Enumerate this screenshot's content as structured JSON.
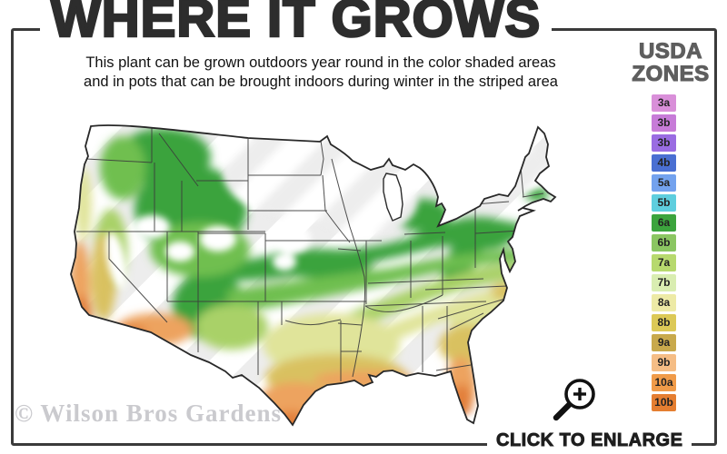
{
  "header": {
    "title": "WHERE IT GROWS",
    "subtitle_line1": "This plant can be grown outdoors year round in the color shaded areas",
    "subtitle_line2": "and in pots that can be brought indoors during winter in the striped area"
  },
  "legend": {
    "heading_line1": "USDA",
    "heading_line2": "ZONES",
    "zones": [
      {
        "label": "3a",
        "color": "#d98fd9"
      },
      {
        "label": "3b",
        "color": "#c77bd8"
      },
      {
        "label": "3b",
        "color": "#9a6ce2"
      },
      {
        "label": "4b",
        "color": "#4a6fd2"
      },
      {
        "label": "5a",
        "color": "#73a2ee"
      },
      {
        "label": "5b",
        "color": "#5ecede"
      },
      {
        "label": "6a",
        "color": "#3ca43d"
      },
      {
        "label": "6b",
        "color": "#8bc662"
      },
      {
        "label": "7a",
        "color": "#b7d96e"
      },
      {
        "label": "7b",
        "color": "#d9edb1"
      },
      {
        "label": "8a",
        "color": "#edeaa6"
      },
      {
        "label": "8b",
        "color": "#dcc957"
      },
      {
        "label": "9a",
        "color": "#c8a94c"
      },
      {
        "label": "9b",
        "color": "#f5bd85"
      },
      {
        "label": "10a",
        "color": "#f09b49"
      },
      {
        "label": "10b",
        "color": "#e57e31"
      }
    ]
  },
  "map": {
    "region_name": "contiguous-united-states-usda-zone-map",
    "shaded_meaning": "color shaded areas",
    "striped_meaning": "striped area"
  },
  "footer": {
    "watermark": "© Wilson Bros Gardens",
    "enlarge_label": "CLICK TO ENLARGE"
  },
  "colors": {
    "frame": "#3a3a3a",
    "title_text": "#2d2d2d",
    "usda_heading": "#5e5e5e",
    "watermark_text": "#cacace"
  }
}
